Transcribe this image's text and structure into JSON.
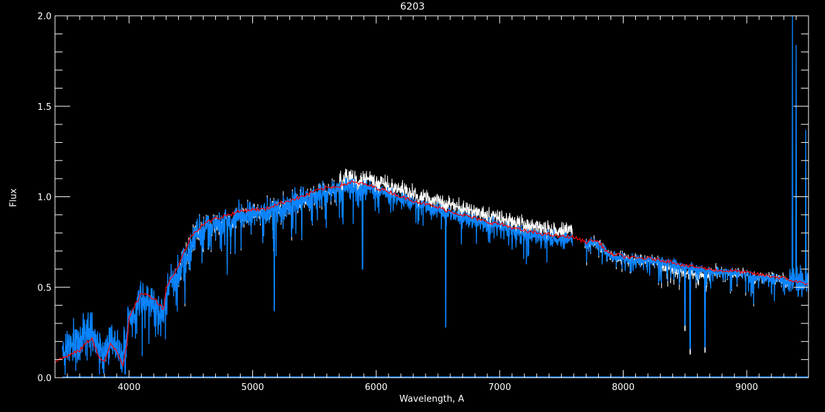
{
  "chart_data": {
    "type": "line",
    "title": "6203",
    "xlabel": "Wavelength, A",
    "ylabel": "Flux",
    "xlim": [
      3400,
      9500
    ],
    "ylim": [
      0,
      2.0
    ],
    "x_major_ticks": [
      4000,
      5000,
      6000,
      7000,
      8000,
      9000
    ],
    "x_tick_labels": [
      "4000",
      "5000",
      "6000",
      "7000",
      "8000",
      "9000"
    ],
    "y_major_ticks": [
      0,
      0.5,
      1.0,
      1.5,
      2.0
    ],
    "y_tick_labels": [
      "0.0",
      "0.5",
      "1.0",
      "1.5",
      "2.0"
    ],
    "grid": false,
    "colors": {
      "background": "#000000",
      "axes": "#ffffff",
      "observed": "#0a84ff",
      "model": "#ffffff",
      "smooth": "#ff0000"
    },
    "series": [
      {
        "role": "smoothed continuum",
        "color": "#ff0000",
        "x": [
          3400,
          3500,
          3600,
          3650,
          3700,
          3750,
          3800,
          3850,
          3900,
          3950,
          3980,
          4000,
          4050,
          4100,
          4200,
          4280,
          4300,
          4350,
          4400,
          4500,
          4600,
          4700,
          4800,
          4900,
          5000,
          5100,
          5200,
          5300,
          5400,
          5500,
          5600,
          5700,
          5800,
          5900,
          6000,
          6100,
          6200,
          6300,
          6400,
          6500,
          6600,
          6700,
          6800,
          6900,
          7000,
          7100,
          7200,
          7300,
          7400,
          7500,
          7580,
          7700,
          7750,
          7800,
          7850,
          7900,
          7950,
          8000,
          8100,
          8200,
          8300,
          8400,
          8500,
          8600,
          8700,
          8800,
          8900,
          9000,
          9100,
          9200,
          9300,
          9400,
          9500
        ],
        "y": [
          0.09,
          0.12,
          0.15,
          0.19,
          0.22,
          0.12,
          0.08,
          0.19,
          0.15,
          0.07,
          0.18,
          0.33,
          0.4,
          0.47,
          0.44,
          0.38,
          0.5,
          0.56,
          0.62,
          0.78,
          0.85,
          0.88,
          0.9,
          0.92,
          0.93,
          0.93,
          0.96,
          0.98,
          1.0,
          1.03,
          1.05,
          1.06,
          1.08,
          1.07,
          1.05,
          1.03,
          1.0,
          0.98,
          0.96,
          0.94,
          0.92,
          0.9,
          0.88,
          0.86,
          0.85,
          0.83,
          0.81,
          0.8,
          0.79,
          0.78,
          0.78,
          0.75,
          0.76,
          0.75,
          0.71,
          0.68,
          0.68,
          0.67,
          0.66,
          0.66,
          0.65,
          0.64,
          0.62,
          0.61,
          0.6,
          0.59,
          0.59,
          0.58,
          0.57,
          0.56,
          0.55,
          0.53,
          0.52
        ]
      },
      {
        "role": "observed spectrum",
        "color": "#0a84ff",
        "noise": "high"
      },
      {
        "role": "model spectrum",
        "color": "#ffffff",
        "offset_above_observed_6000_7600": 0.05
      },
      {
        "role": "error spectrum",
        "color": "#0a84ff",
        "level": 0.0
      }
    ],
    "features": [
      {
        "x": 3934,
        "y": 0.05
      },
      {
        "x": 3968,
        "y": 0.02
      },
      {
        "x": 4305,
        "y": 0.35
      },
      {
        "x": 5175,
        "y": 0.37
      },
      {
        "x": 5890,
        "y": 0.6
      },
      {
        "x": 6563,
        "y": 0.28
      },
      {
        "x": 8500,
        "y": 0.29
      },
      {
        "x": 8542,
        "y": 0.16
      },
      {
        "x": 8662,
        "y": 0.17
      },
      {
        "x": 9370,
        "y": 2.0
      },
      {
        "x": 9400,
        "y": 1.84
      },
      {
        "x": 9478,
        "y": 1.37
      }
    ]
  }
}
